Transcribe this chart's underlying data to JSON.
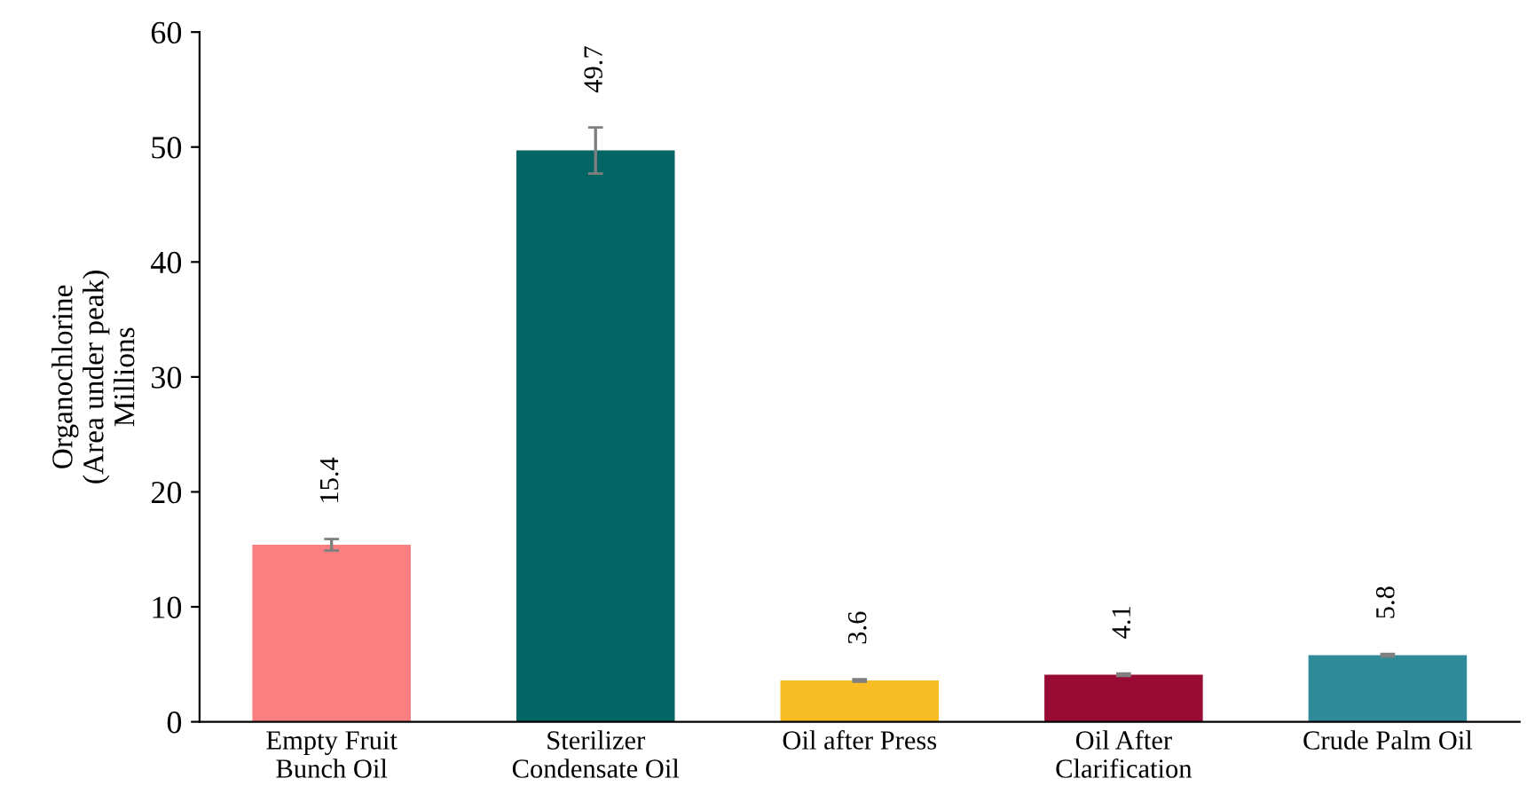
{
  "chart_data": {
    "type": "bar",
    "ylabel": "Organochlorine\n(Area under peak)\nMillions",
    "categories": [
      "Empty Fruit\nBunch Oil",
      "Sterilizer\nCondensate Oil",
      "Oil after Press",
      "Oil After\nClarification",
      "Crude Palm Oil"
    ],
    "values": [
      15.4,
      49.7,
      3.6,
      4.1,
      5.8
    ],
    "errors": [
      0.5,
      2.0,
      0.1,
      0.1,
      0.1
    ],
    "colors": [
      "#fa7f80",
      "#046664",
      "#f8bd22",
      "#990b35",
      "#2f8a9a"
    ],
    "ylim": [
      0,
      60
    ],
    "yticks": [
      0,
      10,
      20,
      30,
      40,
      50,
      60
    ],
    "data_labels": true,
    "grid": false,
    "legend": false
  }
}
